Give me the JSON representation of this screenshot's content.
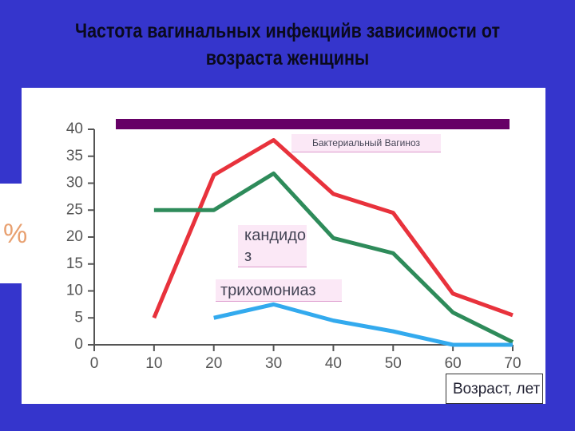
{
  "chart_data": {
    "type": "line",
    "title": "Частота вагинальных инфекцийв зависимости от возраста женщины",
    "x_label": "Возраст, лет",
    "y_label": "%",
    "xlim": [
      0,
      70
    ],
    "xticks": [
      0,
      10,
      20,
      30,
      40,
      50,
      60,
      70
    ],
    "ylim": [
      0,
      40
    ],
    "yticks": [
      0,
      5,
      10,
      15,
      20,
      25,
      30,
      35,
      40
    ],
    "series": [
      {
        "name": "Бактериальный Вагиноз",
        "color": "#e8323c",
        "x": [
          10,
          20,
          30,
          40,
          50,
          60,
          70
        ],
        "values": [
          5,
          31.5,
          38,
          28,
          24.5,
          9.5,
          5.5
        ]
      },
      {
        "name": "кандидоз",
        "color": "#2e8b5a",
        "x": [
          10,
          20,
          30,
          40,
          50,
          60,
          70
        ],
        "values": [
          25,
          25,
          31.8,
          19.8,
          17,
          6,
          0.5
        ]
      },
      {
        "name": "трихомониаз",
        "color": "#33aaee",
        "x": [
          20,
          30,
          40,
          50,
          60,
          70
        ],
        "values": [
          5,
          7.5,
          4.5,
          2.5,
          0,
          0
        ]
      }
    ]
  }
}
